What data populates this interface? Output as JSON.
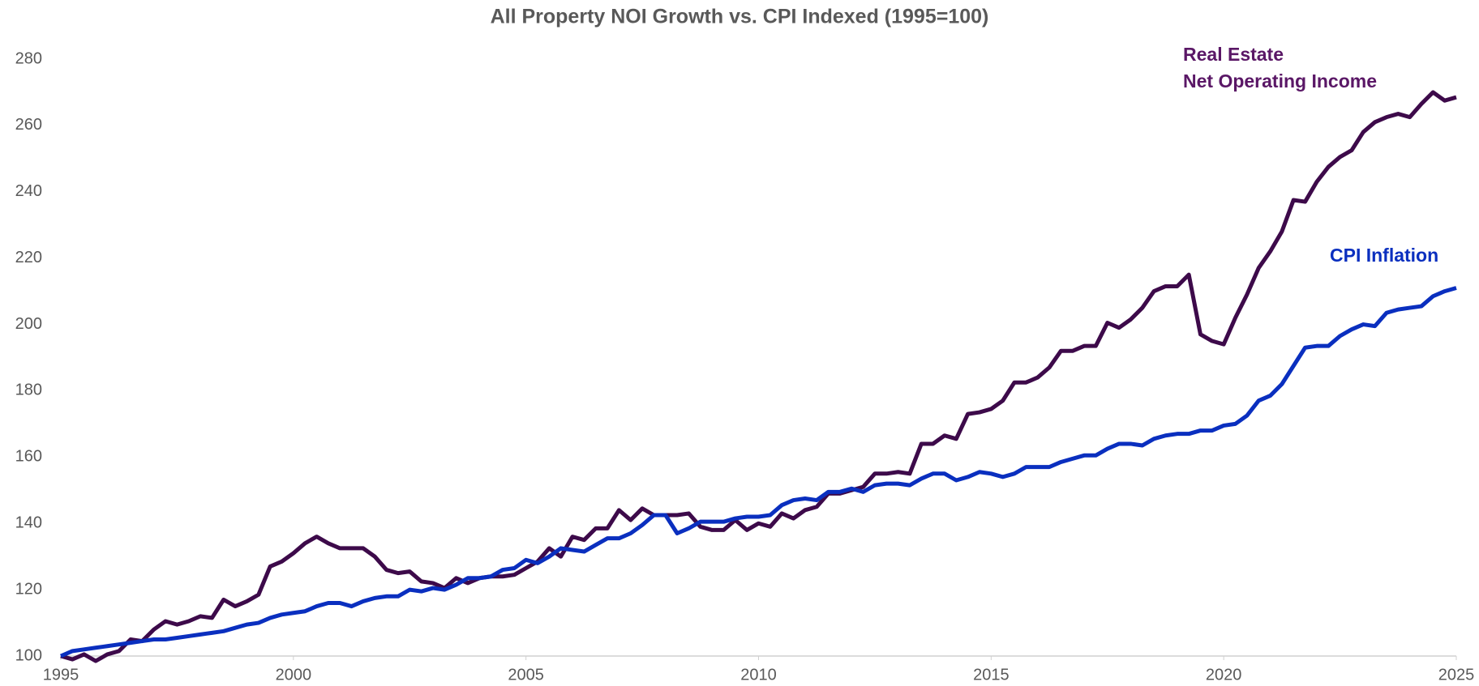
{
  "chart_data": {
    "type": "line",
    "title": "All Property NOI Growth vs. CPI Indexed (1995=100)",
    "x": [
      1995,
      1995.25,
      1995.5,
      1995.75,
      1996,
      1996.25,
      1996.5,
      1996.75,
      1997,
      1997.25,
      1997.5,
      1997.75,
      1998,
      1998.25,
      1998.5,
      1998.75,
      1999,
      1999.25,
      1999.5,
      1999.75,
      2000,
      2000.25,
      2000.5,
      2000.75,
      2001,
      2001.25,
      2001.5,
      2001.75,
      2002,
      2002.25,
      2002.5,
      2002.75,
      2003,
      2003.25,
      2003.5,
      2003.75,
      2004,
      2004.25,
      2004.5,
      2004.75,
      2005,
      2005.25,
      2005.5,
      2005.75,
      2006,
      2006.25,
      2006.5,
      2006.75,
      2007,
      2007.25,
      2007.5,
      2007.75,
      2008,
      2008.25,
      2008.5,
      2008.75,
      2009,
      2009.25,
      2009.5,
      2009.75,
      2010,
      2010.25,
      2010.5,
      2010.75,
      2011,
      2011.25,
      2011.5,
      2011.75,
      2012,
      2012.25,
      2012.5,
      2012.75,
      2013,
      2013.25,
      2013.5,
      2013.75,
      2014,
      2014.25,
      2014.5,
      2014.75,
      2015,
      2015.25,
      2015.5,
      2015.75,
      2016,
      2016.25,
      2016.5,
      2016.75,
      2017,
      2017.25,
      2017.5,
      2017.75,
      2018,
      2018.25,
      2018.5,
      2018.75,
      2019,
      2019.25,
      2019.5,
      2019.75,
      2020,
      2020.25,
      2020.5,
      2020.75,
      2021,
      2021.25,
      2021.5,
      2021.75,
      2022,
      2022.25,
      2022.5,
      2022.75,
      2023,
      2023.25,
      2023.5,
      2023.75,
      2024,
      2024.25,
      2024.5,
      2024.75,
      2025
    ],
    "series": [
      {
        "label": [
          "Real Estate",
          "Net Operating Income"
        ],
        "color": "#3d0a4a",
        "label_color": "#5a1766",
        "values": [
          100,
          99,
          100.5,
          98.5,
          100.5,
          101.5,
          105,
          104.5,
          108,
          110.5,
          109.5,
          110.5,
          112,
          111.5,
          117,
          115,
          116.5,
          118.5,
          127,
          128.5,
          131,
          134,
          136,
          134,
          132.5,
          132.5,
          132.5,
          130,
          126,
          125,
          125.5,
          122.5,
          122,
          120.5,
          123.5,
          122,
          123.5,
          124,
          124,
          124.5,
          126.5,
          128.5,
          132.5,
          130,
          136,
          135,
          138.5,
          138.5,
          144,
          141,
          144.5,
          142.5,
          142.5,
          142.5,
          143,
          139,
          138,
          138,
          141,
          138,
          140,
          139,
          143,
          141.5,
          144,
          145,
          149,
          149,
          150,
          151,
          155,
          155,
          155.5,
          155,
          164,
          164,
          166.5,
          165.5,
          173,
          173.5,
          174.5,
          177,
          182.5,
          182.5,
          184,
          187,
          192,
          192,
          193.5,
          193.5,
          200.5,
          199,
          201.5,
          205,
          210,
          211.5,
          211.5,
          215,
          197,
          195,
          194,
          202,
          209,
          217,
          222,
          228,
          237.5,
          237,
          243,
          247.5,
          250.5,
          252.5,
          258,
          261,
          262.5,
          263.5,
          262.5,
          266.5,
          270,
          267.5,
          268.5
        ]
      },
      {
        "label": [
          "CPI Inflation"
        ],
        "color": "#0a2fbf",
        "label_color": "#0a2fbf",
        "values": [
          100,
          101.5,
          102,
          102.5,
          103,
          103.5,
          104,
          104.5,
          105,
          105,
          105.5,
          106,
          106.5,
          107,
          107.5,
          108.5,
          109.5,
          110,
          111.5,
          112.5,
          113,
          113.5,
          115,
          116,
          116,
          115,
          116.5,
          117.5,
          118,
          118,
          120,
          119.5,
          120.5,
          120,
          121.5,
          123.5,
          123.5,
          124,
          126,
          126.5,
          129,
          128,
          130,
          132.5,
          132,
          131.5,
          133.5,
          135.5,
          135.5,
          137,
          139.5,
          142.5,
          142.5,
          137,
          138.5,
          140.5,
          140.5,
          140.5,
          141.5,
          142,
          142,
          142.5,
          145.5,
          147,
          147.5,
          147,
          149.5,
          149.5,
          150.5,
          149.5,
          151.5,
          152,
          152,
          151.5,
          153.5,
          155,
          155,
          153,
          154,
          155.5,
          155,
          154,
          155,
          157,
          157,
          157,
          158.5,
          159.5,
          160.5,
          160.5,
          162.5,
          164,
          164,
          163.5,
          165.5,
          166.5,
          167,
          167,
          168,
          168,
          169.5,
          170,
          172.5,
          177,
          178.5,
          182,
          187.5,
          193,
          193.5,
          193.5,
          196.5,
          198.5,
          200,
          199.5,
          203.5,
          204.5,
          205,
          205.5,
          208.5,
          210,
          211
        ]
      }
    ],
    "xlim": [
      1995,
      2025
    ],
    "xticks": [
      1995,
      2000,
      2005,
      2010,
      2015,
      2020,
      2025
    ],
    "ylim": [
      100,
      280
    ],
    "yticks": [
      100,
      120,
      140,
      160,
      180,
      200,
      220,
      240,
      260,
      280
    ],
    "grid": false
  }
}
